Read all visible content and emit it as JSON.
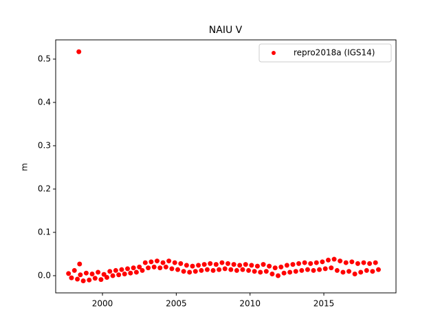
{
  "chart_data": {
    "type": "scatter",
    "title": "NAIU V",
    "y_label": "m",
    "x": [
      1997.7,
      1997.9,
      1998.1,
      1998.3,
      1998.4,
      1998.45,
      1998.5,
      1998.7,
      1998.9,
      1999.1,
      1999.3,
      1999.5,
      1999.7,
      1999.9,
      2000.1,
      2000.3,
      2000.5,
      2000.7,
      2000.9,
      2001.1,
      2001.3,
      2001.5,
      2001.7,
      2001.9,
      2002.1,
      2002.3,
      2002.5,
      2002.7,
      2002.9,
      2003.1,
      2003.3,
      2003.5,
      2003.7,
      2003.9,
      2004.1,
      2004.3,
      2004.5,
      2004.7,
      2004.9,
      2005.1,
      2005.3,
      2005.5,
      2005.7,
      2005.9,
      2006.1,
      2006.3,
      2006.5,
      2006.7,
      2006.9,
      2007.1,
      2007.3,
      2007.5,
      2007.7,
      2007.9,
      2008.1,
      2008.3,
      2008.5,
      2008.7,
      2008.9,
      2009.1,
      2009.3,
      2009.5,
      2009.7,
      2009.9,
      2010.1,
      2010.3,
      2010.5,
      2010.7,
      2010.9,
      2011.1,
      2011.3,
      2011.5,
      2011.7,
      2011.9,
      2012.1,
      2012.3,
      2012.5,
      2012.7,
      2012.9,
      2013.1,
      2013.3,
      2013.5,
      2013.7,
      2013.9,
      2014.1,
      2014.3,
      2014.5,
      2014.7,
      2014.9,
      2015.1,
      2015.3,
      2015.5,
      2015.7,
      2015.9,
      2016.1,
      2016.3,
      2016.5,
      2016.7,
      2016.9,
      2017.1,
      2017.3,
      2017.5,
      2017.7,
      2017.9,
      2018.1,
      2018.3,
      2018.5,
      2018.7
    ],
    "series": [
      {
        "name": "repro2018a (IGS14)",
        "color": "#ff0000",
        "values": [
          0.005,
          -0.005,
          0.012,
          -0.008,
          0.517,
          0.027,
          0.002,
          -0.012,
          0.006,
          -0.01,
          0.004,
          -0.006,
          0.008,
          -0.009,
          0.003,
          -0.004,
          0.01,
          0.0,
          0.012,
          0.002,
          0.014,
          0.004,
          0.016,
          0.006,
          0.018,
          0.008,
          0.02,
          0.012,
          0.03,
          0.018,
          0.032,
          0.02,
          0.034,
          0.018,
          0.03,
          0.02,
          0.034,
          0.016,
          0.03,
          0.014,
          0.028,
          0.01,
          0.024,
          0.008,
          0.022,
          0.01,
          0.024,
          0.012,
          0.026,
          0.014,
          0.028,
          0.012,
          0.026,
          0.014,
          0.03,
          0.016,
          0.028,
          0.014,
          0.026,
          0.012,
          0.024,
          0.014,
          0.026,
          0.012,
          0.024,
          0.01,
          0.022,
          0.008,
          0.026,
          0.01,
          0.022,
          0.004,
          0.018,
          0.0,
          0.02,
          0.006,
          0.024,
          0.008,
          0.026,
          0.01,
          0.028,
          0.012,
          0.03,
          0.014,
          0.028,
          0.012,
          0.03,
          0.014,
          0.032,
          0.016,
          0.036,
          0.018,
          0.038,
          0.012,
          0.034,
          0.008,
          0.03,
          0.01,
          0.032,
          0.004,
          0.028,
          0.008,
          0.03,
          0.012,
          0.028,
          0.01,
          0.03,
          0.014
        ]
      }
    ],
    "xlim": [
      1996.83,
      2019.89
    ],
    "ylim": [
      -0.0397,
      0.5444
    ],
    "xticks": [
      2000,
      2005,
      2010,
      2015
    ],
    "yticks": [
      {
        "value": 0,
        "label": "0.0"
      },
      0.1,
      0.2,
      0.3,
      0.4,
      0.5
    ],
    "legend": "upper right"
  }
}
